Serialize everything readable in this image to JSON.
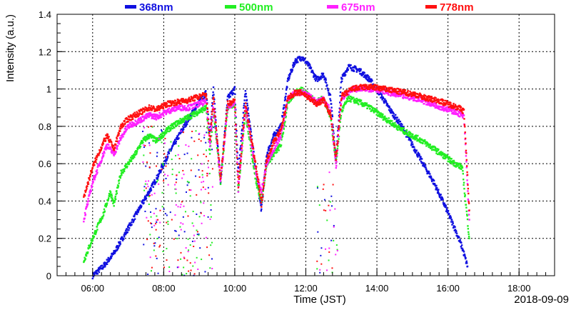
{
  "chart_data": {
    "type": "scatter",
    "title": "",
    "xlabel": "Time (JST)",
    "ylabel": "Intensity (a.u.)",
    "date_label": "2018-09-09",
    "xlim": [
      5.0,
      19.0
    ],
    "ylim": [
      0,
      1.4
    ],
    "x_ticks": [
      6,
      8,
      10,
      12,
      14,
      16,
      18
    ],
    "x_tick_labels": [
      "06:00",
      "08:00",
      "10:00",
      "12:00",
      "14:00",
      "16:00",
      "18:00"
    ],
    "y_ticks": [
      0,
      0.2,
      0.4,
      0.6,
      0.8,
      1,
      1.2,
      1.4
    ],
    "y_tick_labels": [
      "0",
      "0.2",
      "0.4",
      "0.6",
      "0.8",
      "1",
      "1.2",
      "1.4"
    ],
    "grid": true,
    "legend_position": "top",
    "series": [
      {
        "name": "368nm",
        "color": "#1010e0",
        "x": [
          6.0,
          6.3,
          6.6,
          6.9,
          7.2,
          7.5,
          7.8,
          8.1,
          8.4,
          8.7,
          9.0,
          9.2,
          9.3,
          9.4,
          9.6,
          9.8,
          10.0,
          10.1,
          10.3,
          10.6,
          10.75,
          10.9,
          11.1,
          11.3,
          11.5,
          11.7,
          11.9,
          12.1,
          12.3,
          12.5,
          12.7,
          12.85,
          13.0,
          13.2,
          13.5,
          13.8,
          14.1,
          14.4,
          14.7,
          15.0,
          15.3,
          15.6,
          15.9,
          16.2,
          16.4,
          16.55
        ],
        "y": [
          0.0,
          0.05,
          0.12,
          0.22,
          0.32,
          0.42,
          0.52,
          0.64,
          0.74,
          0.84,
          0.93,
          0.98,
          0.75,
          1.0,
          0.5,
          0.95,
          1.0,
          0.55,
          1.0,
          0.55,
          0.35,
          0.65,
          0.75,
          0.8,
          1.05,
          1.15,
          1.17,
          1.12,
          1.05,
          1.08,
          0.95,
          0.62,
          1.05,
          1.12,
          1.1,
          1.05,
          0.97,
          0.88,
          0.8,
          0.7,
          0.6,
          0.5,
          0.38,
          0.25,
          0.15,
          0.05
        ]
      },
      {
        "name": "500nm",
        "color": "#22ee22",
        "x": [
          5.75,
          6.0,
          6.3,
          6.5,
          6.6,
          6.8,
          7.0,
          7.2,
          7.4,
          7.6,
          7.8,
          8.1,
          8.4,
          8.7,
          9.0,
          9.2,
          9.3,
          9.4,
          9.6,
          9.8,
          10.0,
          10.1,
          10.3,
          10.6,
          10.75,
          10.9,
          11.1,
          11.3,
          11.5,
          11.7,
          11.9,
          12.1,
          12.3,
          12.5,
          12.7,
          12.85,
          13.0,
          13.2,
          13.5,
          13.8,
          14.1,
          14.4,
          14.7,
          15.0,
          15.3,
          15.6,
          15.9,
          16.2,
          16.4,
          16.6
        ],
        "y": [
          0.08,
          0.2,
          0.33,
          0.45,
          0.38,
          0.55,
          0.6,
          0.65,
          0.72,
          0.75,
          0.72,
          0.78,
          0.82,
          0.85,
          0.88,
          0.9,
          0.65,
          0.88,
          0.5,
          0.9,
          0.92,
          0.45,
          0.88,
          0.5,
          0.4,
          0.6,
          0.65,
          0.7,
          0.93,
          0.98,
          1.0,
          0.96,
          0.93,
          0.95,
          0.85,
          0.6,
          0.88,
          0.95,
          0.93,
          0.9,
          0.86,
          0.82,
          0.78,
          0.75,
          0.72,
          0.68,
          0.64,
          0.6,
          0.58,
          0.2
        ]
      },
      {
        "name": "675nm",
        "color": "#ff20ff",
        "x": [
          5.75,
          6.0,
          6.2,
          6.4,
          6.6,
          6.8,
          7.0,
          7.2,
          7.4,
          7.6,
          7.8,
          8.1,
          8.4,
          8.7,
          9.0,
          9.2,
          9.3,
          9.4,
          9.6,
          9.8,
          10.0,
          10.1,
          10.3,
          10.6,
          10.75,
          10.9,
          11.1,
          11.3,
          11.5,
          11.7,
          11.9,
          12.1,
          12.3,
          12.5,
          12.7,
          12.85,
          13.0,
          13.3,
          13.6,
          13.9,
          14.2,
          14.5,
          14.8,
          15.1,
          15.4,
          15.7,
          16.0,
          16.3,
          16.45,
          16.6
        ],
        "y": [
          0.3,
          0.5,
          0.6,
          0.7,
          0.65,
          0.74,
          0.8,
          0.82,
          0.84,
          0.86,
          0.85,
          0.88,
          0.9,
          0.9,
          0.92,
          0.93,
          0.7,
          0.92,
          0.5,
          0.9,
          0.93,
          0.45,
          0.9,
          0.55,
          0.45,
          0.6,
          0.68,
          0.75,
          0.95,
          0.98,
          0.98,
          0.96,
          0.93,
          0.95,
          0.88,
          0.58,
          0.95,
          1.0,
          1.0,
          1.0,
          0.99,
          0.97,
          0.96,
          0.95,
          0.93,
          0.91,
          0.89,
          0.87,
          0.85,
          0.3
        ]
      },
      {
        "name": "778nm",
        "color": "#ff1010",
        "x": [
          5.75,
          6.0,
          6.2,
          6.4,
          6.6,
          6.8,
          7.0,
          7.2,
          7.4,
          7.6,
          7.8,
          8.1,
          8.4,
          8.7,
          9.0,
          9.2,
          9.3,
          9.4,
          9.6,
          9.8,
          10.0,
          10.1,
          10.3,
          10.6,
          10.75,
          10.9,
          11.1,
          11.3,
          11.5,
          11.7,
          11.9,
          12.1,
          12.3,
          12.5,
          12.7,
          12.85,
          13.0,
          13.3,
          13.6,
          13.9,
          14.2,
          14.5,
          14.8,
          15.1,
          15.4,
          15.7,
          16.0,
          16.3,
          16.45,
          16.6
        ],
        "y": [
          0.42,
          0.58,
          0.67,
          0.75,
          0.68,
          0.8,
          0.84,
          0.86,
          0.88,
          0.9,
          0.89,
          0.92,
          0.93,
          0.94,
          0.96,
          0.97,
          0.72,
          0.96,
          0.52,
          0.92,
          0.94,
          0.48,
          0.92,
          0.58,
          0.38,
          0.62,
          0.72,
          0.78,
          0.95,
          0.98,
          0.98,
          0.95,
          0.92,
          0.94,
          0.86,
          0.62,
          0.96,
          1.0,
          1.01,
          1.01,
          1.0,
          0.99,
          0.98,
          0.97,
          0.95,
          0.94,
          0.92,
          0.9,
          0.88,
          0.35
        ]
      }
    ]
  }
}
